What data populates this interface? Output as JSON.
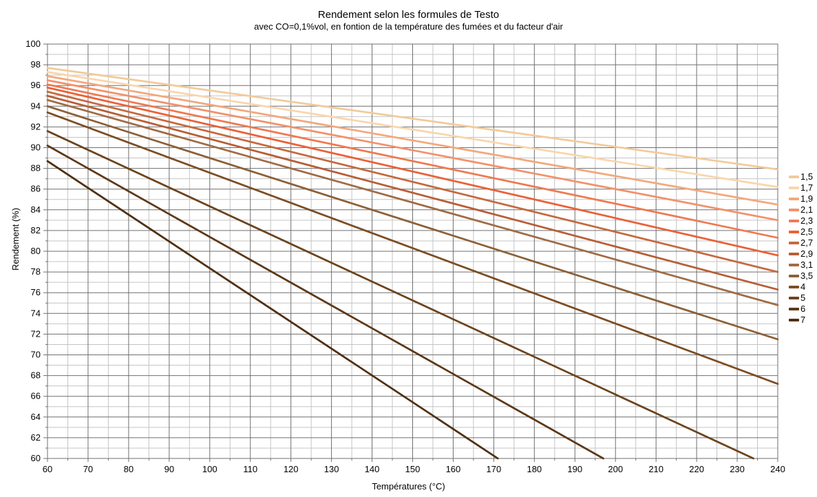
{
  "chart_data": {
    "type": "line",
    "title": "Rendement selon les formules de Testo",
    "subtitle": "avec CO=0,1%vol, en fontion de la température des fumées et du facteur d'air",
    "xlabel": "Températures (°C)",
    "ylabel": "Rendement (%)",
    "xlim": [
      60,
      240
    ],
    "ylim": [
      60,
      100
    ],
    "x_major_step": 10,
    "x_minor_step": 5,
    "y_major_step": 2,
    "y_minor_step": 1,
    "grid": true,
    "legend_position": "right",
    "legend_meaning": "facteur d'air",
    "x_tick_labels": [
      60,
      70,
      80,
      90,
      100,
      110,
      120,
      130,
      140,
      150,
      160,
      170,
      180,
      190,
      200,
      210,
      220,
      230,
      240
    ],
    "y_tick_labels": [
      100,
      98,
      96,
      94,
      92,
      90,
      88,
      86,
      84,
      82,
      80,
      78,
      76,
      74,
      72,
      70,
      68,
      66,
      64,
      62,
      60
    ],
    "colors": {
      "grid_major": "#6F6F6F",
      "grid_minor": "#C4C4C4",
      "background": "#FFFFFF",
      "text": "#000000"
    },
    "series": [
      {
        "name": "1,5",
        "color": "#F1CB9B",
        "points": [
          [
            60,
            97.7
          ],
          [
            240,
            87.9
          ]
        ]
      },
      {
        "name": "1,7",
        "color": "#F9D6AC",
        "points": [
          [
            60,
            97.3
          ],
          [
            240,
            86.2
          ]
        ]
      },
      {
        "name": "1,9",
        "color": "#F3A87C",
        "points": [
          [
            60,
            96.9
          ],
          [
            240,
            84.5
          ]
        ]
      },
      {
        "name": "2,1",
        "color": "#F2926C",
        "points": [
          [
            60,
            96.5
          ],
          [
            240,
            83.0
          ]
        ]
      },
      {
        "name": "2,3",
        "color": "#EF7A52",
        "points": [
          [
            60,
            96.1
          ],
          [
            240,
            81.3
          ]
        ]
      },
      {
        "name": "2,5",
        "color": "#EB6138",
        "points": [
          [
            60,
            95.8
          ],
          [
            240,
            79.6
          ]
        ]
      },
      {
        "name": "2,7",
        "color": "#C56A3F",
        "points": [
          [
            60,
            95.4
          ],
          [
            240,
            78.0
          ]
        ]
      },
      {
        "name": "2,9",
        "color": "#B85E36",
        "points": [
          [
            60,
            95.0
          ],
          [
            240,
            76.3
          ]
        ]
      },
      {
        "name": "3,1",
        "color": "#A06C46",
        "points": [
          [
            60,
            94.6
          ],
          [
            240,
            74.8
          ]
        ]
      },
      {
        "name": "3,5",
        "color": "#8D6038",
        "points": [
          [
            60,
            94.0
          ],
          [
            240,
            71.5
          ]
        ]
      },
      {
        "name": "4",
        "color": "#7C4E23",
        "points": [
          [
            60,
            93.4
          ],
          [
            240,
            67.2
          ]
        ]
      },
      {
        "name": "5",
        "color": "#6C441D",
        "points": [
          [
            60,
            91.6
          ],
          [
            234,
            60.0
          ]
        ]
      },
      {
        "name": "6",
        "color": "#5D3918",
        "points": [
          [
            60,
            90.2
          ],
          [
            197,
            60.0
          ]
        ]
      },
      {
        "name": "7",
        "color": "#4F2F11",
        "points": [
          [
            60,
            88.7
          ],
          [
            171,
            60.0
          ]
        ]
      }
    ]
  }
}
